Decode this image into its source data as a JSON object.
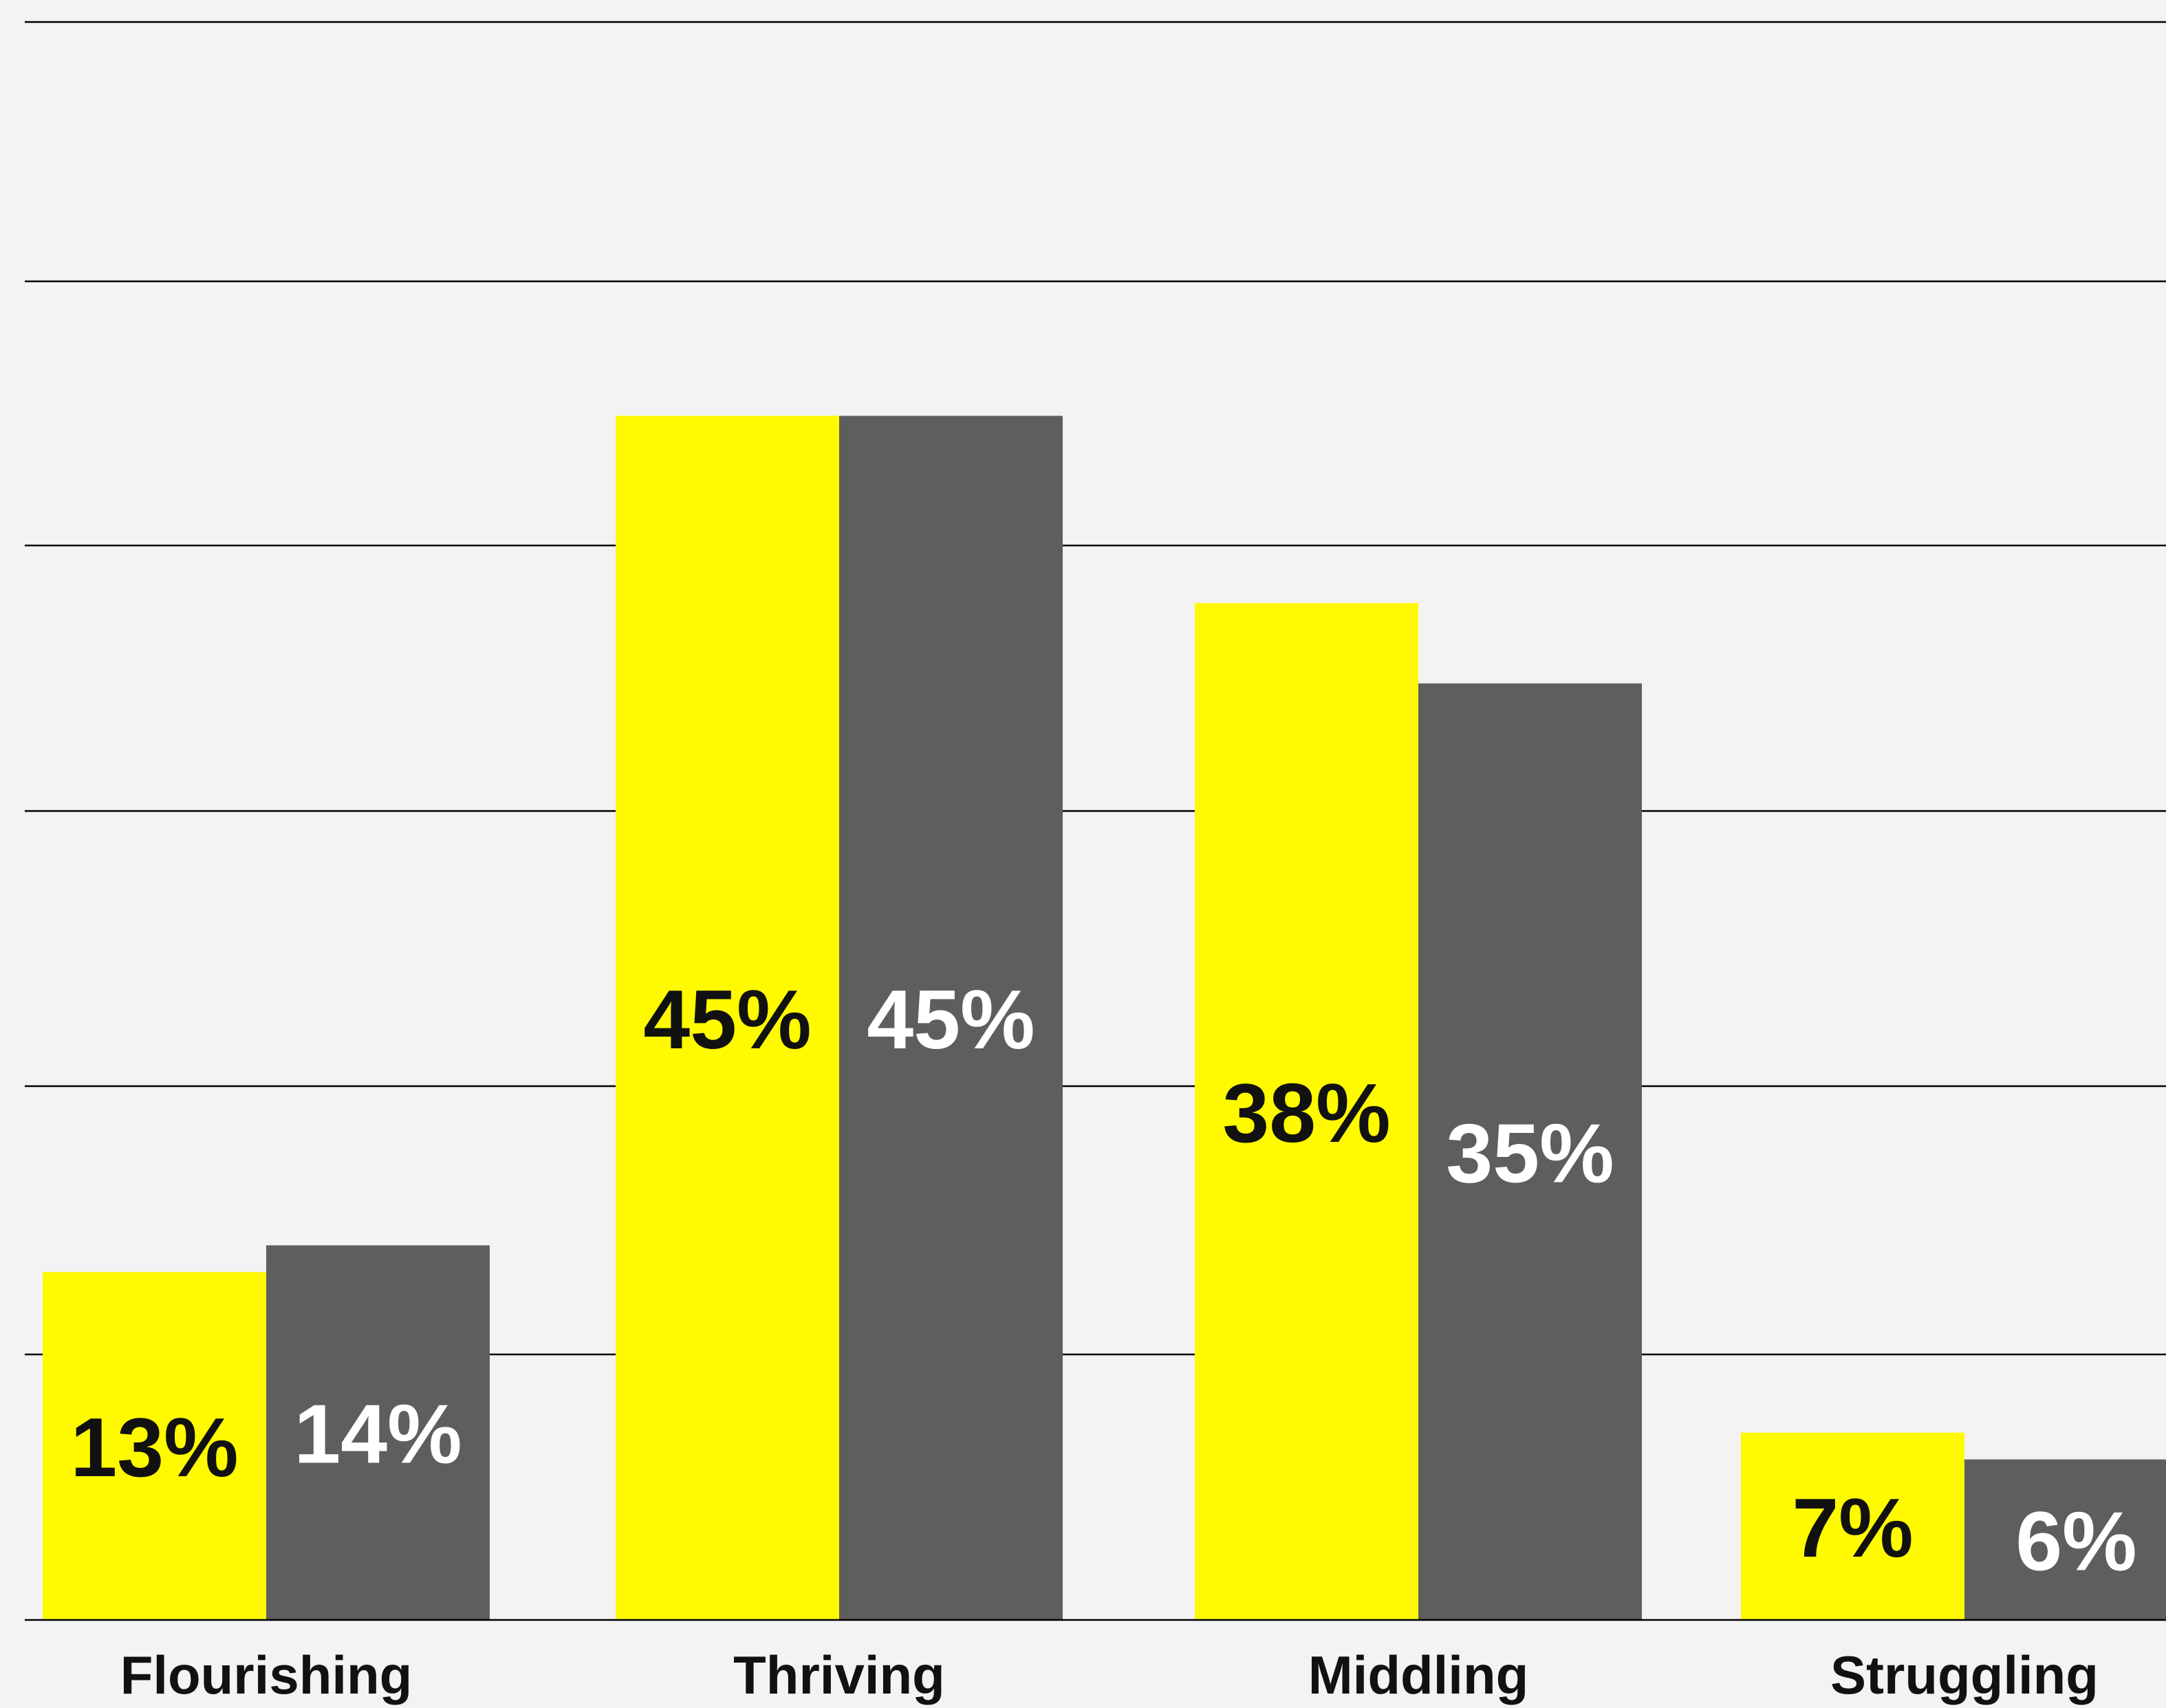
{
  "chart_data": {
    "type": "bar",
    "categories": [
      "Flourishing",
      "Thriving",
      "Middling",
      "Struggling"
    ],
    "series": [
      {
        "values": [
          13,
          45,
          38,
          7
        ],
        "labels": [
          "13%",
          "45%",
          "38%",
          "7%"
        ],
        "color": "#fffa00",
        "label_color": "#111111"
      },
      {
        "values": [
          14,
          45,
          35,
          6
        ],
        "labels": [
          "14%",
          "45%",
          "35%",
          "6%"
        ],
        "color": "#5e5e5e",
        "label_color": "#ffffff"
      }
    ],
    "ylim": [
      0,
      60
    ],
    "grid": true,
    "gridline_color": "#000000",
    "background": "#f3f3f3"
  }
}
